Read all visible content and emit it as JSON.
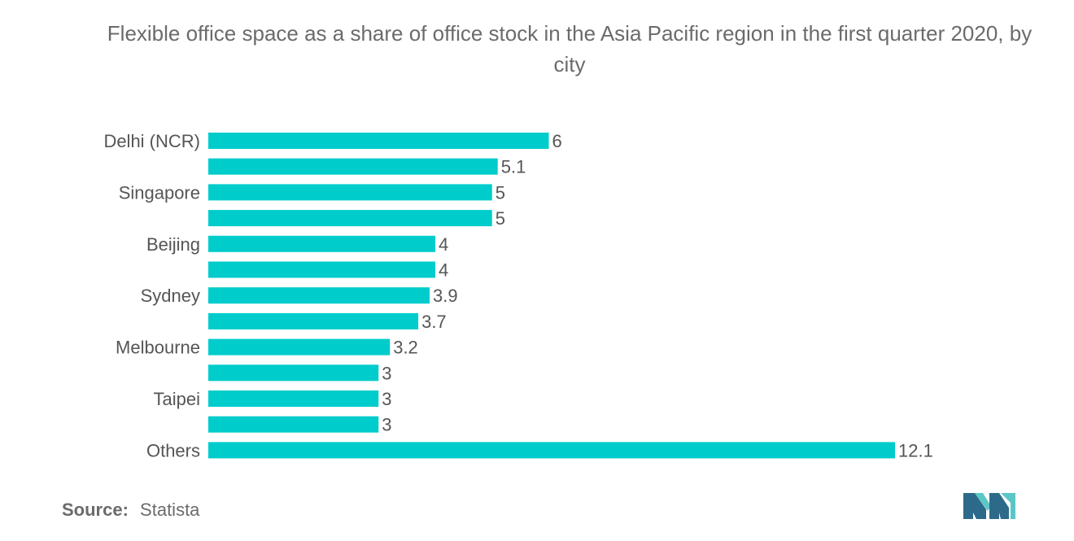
{
  "chart_data": {
    "type": "bar",
    "orientation": "horizontal",
    "title": "Flexible office space as a share of office stock in the Asia Pacific region in the first quarter 2020, by city",
    "categories": [
      "Delhi (NCR)",
      "",
      "Singapore",
      "",
      "Beijing",
      "",
      "Sydney",
      "",
      "Melbourne",
      "",
      "Taipei",
      "",
      "Others"
    ],
    "values": [
      6,
      5.1,
      5,
      5,
      4,
      4,
      3.9,
      3.7,
      3.2,
      3,
      3,
      3,
      12.1
    ],
    "value_labels": [
      "6",
      "5.1",
      "5",
      "5",
      "4",
      "4",
      "3.9",
      "3.7",
      "3.2",
      "3",
      "3",
      "3",
      "12.1"
    ],
    "xlim": [
      0,
      12.1
    ],
    "grid": false,
    "legend": "none",
    "bar_color": "#00cccc"
  },
  "source": {
    "label": "Source:",
    "value": "Statista"
  },
  "logo": {
    "icon": "mordor-intelligence-logo",
    "colors": [
      "#2d6a8a",
      "#5bc6c6"
    ]
  }
}
